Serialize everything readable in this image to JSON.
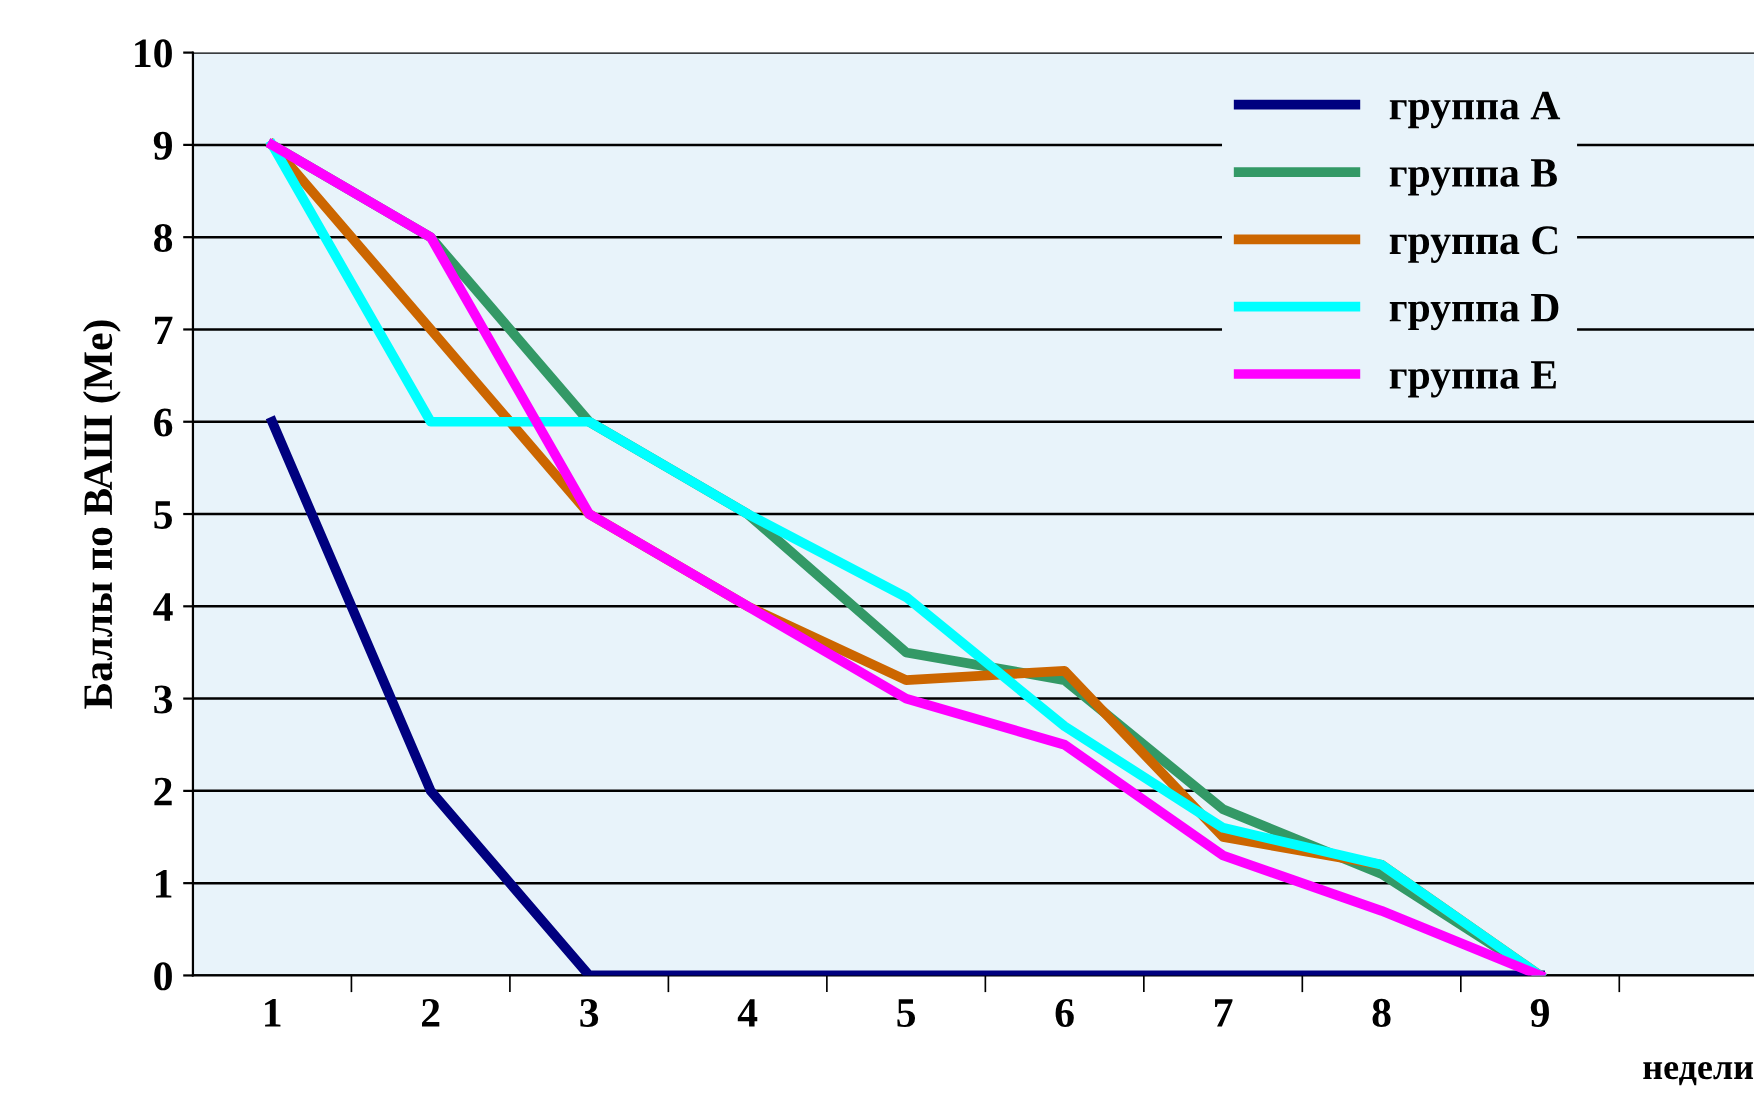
{
  "chart_data": {
    "type": "line",
    "xlabel": "недели",
    "ylabel": "Баллы по ВАШ (Me)",
    "categories": [
      "1",
      "2",
      "3",
      "4",
      "5",
      "6",
      "7",
      "8",
      "9",
      null
    ],
    "ylim": [
      0,
      10
    ],
    "yticks": [
      0,
      1,
      2,
      3,
      4,
      5,
      6,
      7,
      8,
      9,
      10
    ],
    "grid": "y",
    "legend": "top right",
    "marker": "none",
    "line_style": "solid",
    "series": [
      {
        "name": "группа А",
        "color": "#00007f",
        "values": [
          6,
          2,
          0,
          0,
          0,
          0,
          0,
          0,
          0,
          null
        ]
      },
      {
        "name": "группа В",
        "color": "#339966",
        "values": [
          9,
          8,
          6,
          5,
          3.5,
          3.2,
          1.8,
          1.1,
          0,
          null
        ]
      },
      {
        "name": "группа С",
        "color": "#cc6600",
        "values": [
          9,
          7,
          5,
          4,
          3.2,
          3.3,
          1.5,
          1.2,
          0,
          null
        ]
      },
      {
        "name": "группа D",
        "color": "#00ffff",
        "values": [
          9,
          6,
          6,
          5,
          4.1,
          2.7,
          1.6,
          1.2,
          0,
          null
        ]
      },
      {
        "name": "группа Е",
        "color": "#ff00ff",
        "values": [
          9,
          8,
          5,
          4,
          3,
          2.5,
          1.3,
          0.7,
          0,
          null
        ]
      }
    ]
  }
}
